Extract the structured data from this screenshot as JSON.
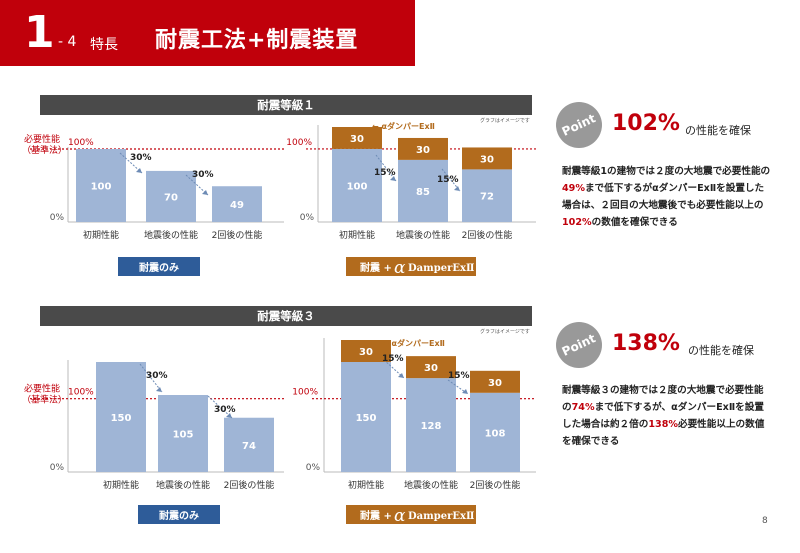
{
  "header": {
    "number": "1",
    "sub": "- 4",
    "category": "特長",
    "title": "耐震工法+制震装置"
  },
  "section1": {
    "band": "耐震等級１",
    "note": "グラフはイメージです"
  },
  "section2": {
    "band": "耐震等級３",
    "note": "グラフはイメージです"
  },
  "common": {
    "req_line1": "必要性能",
    "req_line2": "（基準法）",
    "pct100": "100%",
    "zero": "0%",
    "cats": [
      "初期性能",
      "地震後の性能",
      "2回後の性能"
    ],
    "only_label": "耐震のみ",
    "damper_arrow": "← αダンパーExⅡ",
    "combo_prefix": "耐震 + ",
    "combo_alpha": "α",
    "combo_brand": "DamperExⅡ"
  },
  "colors": {
    "header": "#c0000b",
    "band": "#4a4a4a",
    "bar_blue": "#9fb5d6",
    "bar_orange": "#b26b1d",
    "badge_blue": "#2e5c99",
    "badge_orange": "#b26b1d",
    "red_line": "#c0000b"
  },
  "chart_data": [
    {
      "type": "bar",
      "categories": [
        "初期性能",
        "地震後の性能",
        "2回後の性能"
      ],
      "values": [
        100,
        70,
        49
      ],
      "drops": [
        "30%",
        "30%"
      ],
      "ylim": [
        0,
        100
      ]
    },
    {
      "type": "bar",
      "categories": [
        "初期性能",
        "地震後の性能",
        "2回後の性能"
      ],
      "series": [
        {
          "values": [
            100,
            85,
            72
          ]
        },
        {
          "values": [
            30,
            30,
            30
          ]
        }
      ],
      "drops": [
        "15%",
        "15%"
      ],
      "ylim": [
        0,
        130
      ]
    },
    {
      "type": "bar",
      "categories": [
        "初期性能",
        "地震後の性能",
        "2回後の性能"
      ],
      "values": [
        150,
        105,
        74
      ],
      "drops": [
        "30%",
        "30%"
      ],
      "ylim": [
        0,
        150
      ]
    },
    {
      "type": "bar",
      "categories": [
        "初期性能",
        "地震後の性能",
        "2回後の性能"
      ],
      "series": [
        {
          "values": [
            150,
            128,
            108
          ]
        },
        {
          "values": [
            30,
            30,
            30
          ]
        }
      ],
      "drops": [
        "15%",
        "15%"
      ],
      "ylim": [
        0,
        180
      ]
    }
  ],
  "point1": {
    "badge": "Point",
    "big": "102%",
    "small": "の性能を確保",
    "desc": [
      {
        "t": "耐震等級1の建物では２度の大地震で必要性能の"
      },
      {
        "t": "49%",
        "red": true
      },
      {
        "t": "まで低下するがαダンパーExⅡを設置した場合は、２回目の大地震後でも必要性能以上の"
      },
      {
        "t": "102%",
        "red": true
      },
      {
        "t": "の数値を確保できる"
      }
    ]
  },
  "point2": {
    "badge": "Point",
    "big": "138%",
    "small": "の性能を確保",
    "desc": [
      {
        "t": "耐震等級３の建物では２度の大地震で必要性能の"
      },
      {
        "t": "74%",
        "red": true
      },
      {
        "t": "まで低下するが、αダンパーExⅡを設置した場合は約２倍の"
      },
      {
        "t": "138%",
        "red": true
      },
      {
        "t": "必要性能以上の数値を確保できる"
      }
    ]
  },
  "page": "8"
}
